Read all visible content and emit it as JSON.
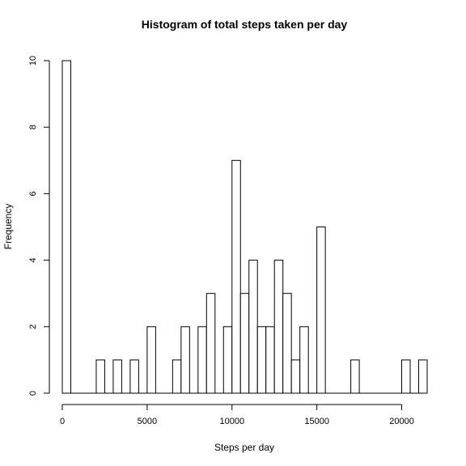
{
  "chart_data": {
    "type": "bar",
    "title": "Histogram of total steps taken per day",
    "xlabel": "Steps per day",
    "ylabel": "Frequency",
    "bin_width": 500,
    "xlim": [
      0,
      21500
    ],
    "ylim": [
      0,
      10
    ],
    "x_ticks": [
      0,
      5000,
      10000,
      15000,
      20000
    ],
    "y_ticks": [
      0,
      2,
      4,
      6,
      8,
      10
    ],
    "bins_start": [
      0,
      500,
      1000,
      1500,
      2000,
      2500,
      3000,
      3500,
      4000,
      4500,
      5000,
      5500,
      6000,
      6500,
      7000,
      7500,
      8000,
      8500,
      9000,
      9500,
      10000,
      10500,
      11000,
      11500,
      12000,
      12500,
      13000,
      13500,
      14000,
      14500,
      15000,
      15500,
      16000,
      16500,
      17000,
      17500,
      18000,
      18500,
      19000,
      19500,
      20000,
      20500,
      21000
    ],
    "values": [
      10,
      0,
      0,
      0,
      1,
      0,
      1,
      0,
      1,
      0,
      2,
      0,
      0,
      1,
      2,
      0,
      2,
      3,
      0,
      2,
      7,
      3,
      4,
      2,
      2,
      4,
      3,
      1,
      2,
      0,
      5,
      0,
      0,
      0,
      1,
      0,
      0,
      0,
      0,
      0,
      1,
      0,
      1
    ],
    "grid": false,
    "legend": "none"
  }
}
